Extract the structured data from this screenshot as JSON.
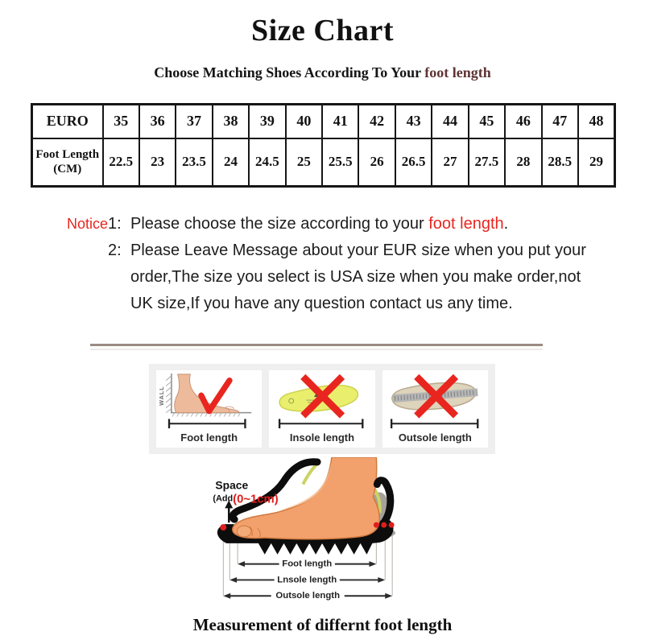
{
  "title": "Size Chart",
  "subtitle": {
    "prefix": "Choose Matching Shoes According To Your ",
    "highlight": "foot length"
  },
  "size_table": {
    "rows": [
      {
        "header": "EURO",
        "values": [
          "35",
          "36",
          "37",
          "38",
          "39",
          "40",
          "41",
          "42",
          "43",
          "44",
          "45",
          "46",
          "47",
          "48"
        ]
      },
      {
        "header": "Foot Length (CM)",
        "values": [
          "22.5",
          "23",
          "23.5",
          "24",
          "24.5",
          "25",
          "25.5",
          "26",
          "26.5",
          "27",
          "27.5",
          "28",
          "28.5",
          "29"
        ]
      }
    ]
  },
  "notice": {
    "label": "Notice",
    "items": [
      {
        "number": "1:",
        "text_before": "Please choose the size according to your ",
        "highlight": "foot length",
        "text_after": "."
      },
      {
        "number": "2:",
        "lines": [
          "Please Leave Message about your EUR size when you put your",
          "order,The size you select is USA size when you make order,not",
          "UK size,If you have any question  contact us any time."
        ]
      }
    ]
  },
  "measure_panels": [
    {
      "label": "Foot length",
      "mark": "check-icon",
      "wall_text": "WALL"
    },
    {
      "label": "Insole length",
      "mark": "cross-icon"
    },
    {
      "label": "Outsole length",
      "mark": "cross-icon"
    }
  ],
  "foot_diagram": {
    "space_label": "Space",
    "space_add": "(Add",
    "space_value": "(0~1cm)",
    "measures": [
      "Foot length",
      "Lnsole length",
      "Outsole length"
    ]
  },
  "caption": "Measurement of differnt foot length",
  "colors": {
    "red": "#e8261f",
    "maroon": "#5e3434",
    "divider": "#9c8b83",
    "insole_yellow": "#e9ef6d",
    "outsole_beige": "#ded3bb",
    "skin": "#f2a06c"
  }
}
